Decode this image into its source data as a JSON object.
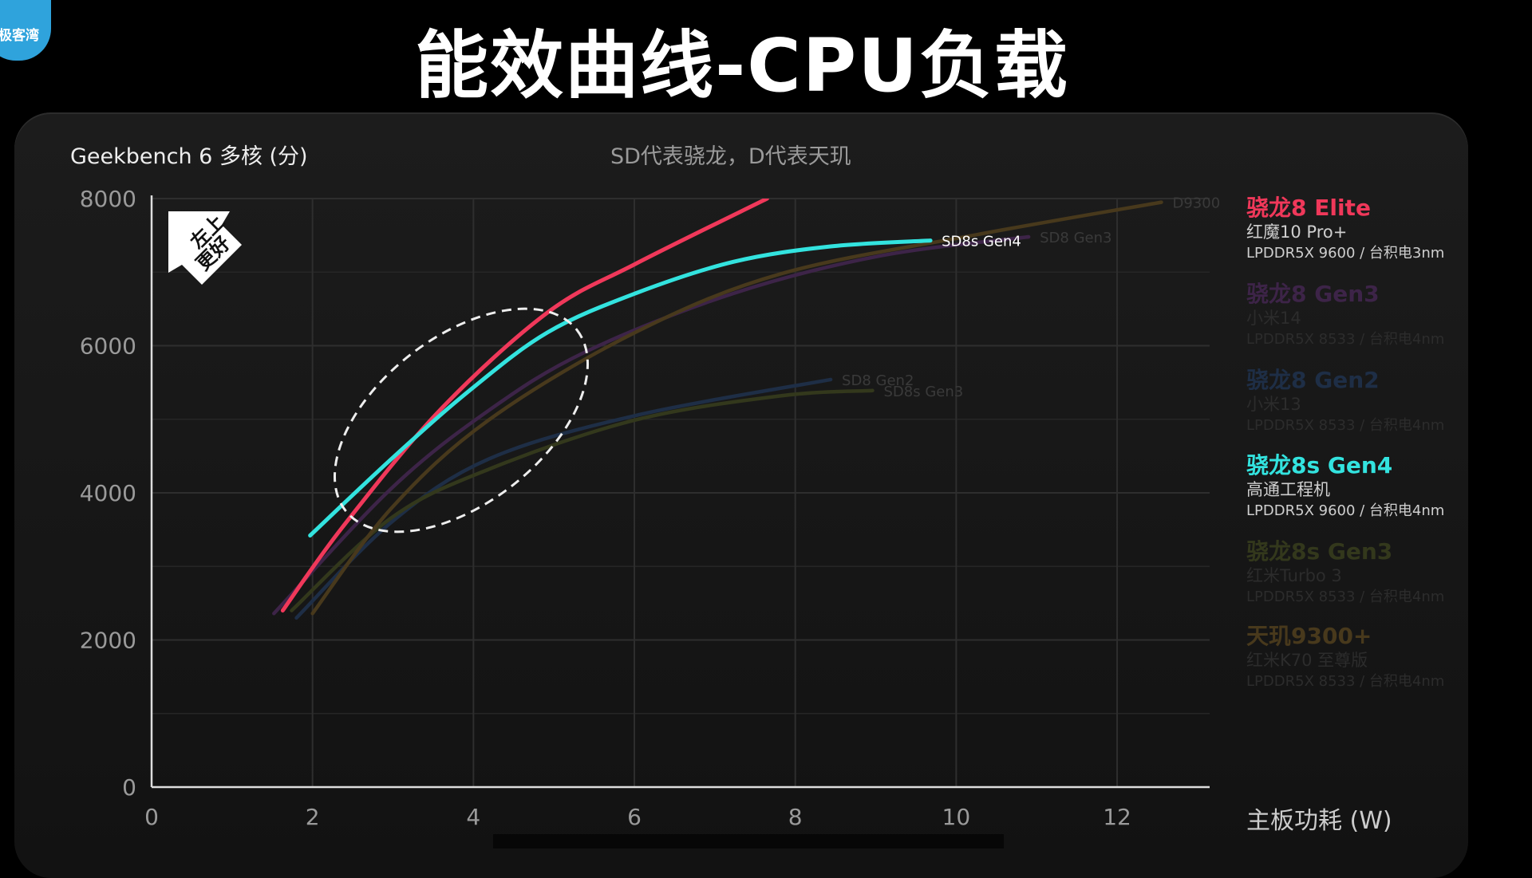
{
  "logo_text": "极客湾",
  "title": "能效曲线-CPU负载",
  "badge_text": [
    "左上",
    "更好"
  ],
  "chart_data": {
    "type": "line",
    "title": "能效曲线-CPU负载",
    "subtitle": "SD代表骁龙，D代表天玑",
    "ylabel": "Geekbench 6  多核 (分)",
    "xlabel": "主板功耗 (W)",
    "xlim": [
      0,
      13.15
    ],
    "ylim": [
      0,
      8000
    ],
    "xticks": [
      0,
      2,
      4,
      6,
      8,
      10,
      12
    ],
    "yticks": [
      0,
      2000,
      4000,
      6000,
      8000
    ],
    "grid": true,
    "legend_position": "right",
    "series": [
      {
        "name": "骁龙8 Gen3",
        "label": "SD8 Gen3",
        "device": "小米14",
        "spec": "LPDDR5X 8533 / 台积电4nm",
        "color": "#3d2448",
        "highlighted": false,
        "x": [
          1.52,
          2.98,
          4.19,
          5.4,
          7.23,
          9.05,
          10.9
        ],
        "y": [
          2360,
          4060,
          5120,
          5920,
          6710,
          7220,
          7480
        ]
      },
      {
        "name": "骁龙8 Gen2",
        "label": "SD8 Gen2",
        "device": "小米13",
        "spec": "LPDDR5X 8533 / 台积电4nm",
        "color": "#1e2e46",
        "highlighted": false,
        "x": [
          1.8,
          2.98,
          4.19,
          6.01,
          8.44
        ],
        "y": [
          2300,
          3600,
          4460,
          5050,
          5540
        ]
      },
      {
        "name": "骁龙8s Gen3",
        "label": "SD8s Gen3",
        "device": "红米Turbo 3",
        "spec": "LPDDR5X 8533 / 台积电4nm",
        "color": "#33381c",
        "highlighted": false,
        "x": [
          1.74,
          2.98,
          4.19,
          6.01,
          7.83,
          8.96
        ],
        "y": [
          2400,
          3660,
          4320,
          4990,
          5320,
          5390
        ]
      },
      {
        "name": "天玑9300+",
        "label": "D9300",
        "device": "红米K70 至尊版",
        "spec": "LPDDR5X 8533 / 台积电4nm",
        "color": "#48391c",
        "highlighted": false,
        "x": [
          2.0,
          2.98,
          4.19,
          6.01,
          7.83,
          10.26,
          12.55
        ],
        "y": [
          2360,
          3790,
          4990,
          6180,
          6980,
          7510,
          7950
        ]
      },
      {
        "name": "骁龙8 Elite",
        "label": "",
        "device": "红魔10 Pro+",
        "spec": "LPDDR5X 9600 / 台积电3nm",
        "color": "#f0385a",
        "highlighted": true,
        "x": [
          1.63,
          2.37,
          3.58,
          4.92,
          6.01,
          7.65
        ],
        "y": [
          2400,
          3530,
          5120,
          6450,
          7110,
          8000
        ]
      },
      {
        "name": "骁龙8s Gen4",
        "label": "SD8s Gen4",
        "device": "高通工程机",
        "spec": "LPDDR5X 9600 / 台积电4nm",
        "color": "#33e3df",
        "highlighted": true,
        "x": [
          1.97,
          2.98,
          3.95,
          4.92,
          6.01,
          7.23,
          8.44,
          9.68
        ],
        "y": [
          3420,
          4460,
          5390,
          6180,
          6710,
          7140,
          7350,
          7430
        ]
      }
    ],
    "legend_order": [
      "骁龙8 Elite",
      "骁龙8 Gen3",
      "骁龙8 Gen2",
      "骁龙8s Gen4",
      "骁龙8s Gen3",
      "天玑9300+"
    ]
  }
}
